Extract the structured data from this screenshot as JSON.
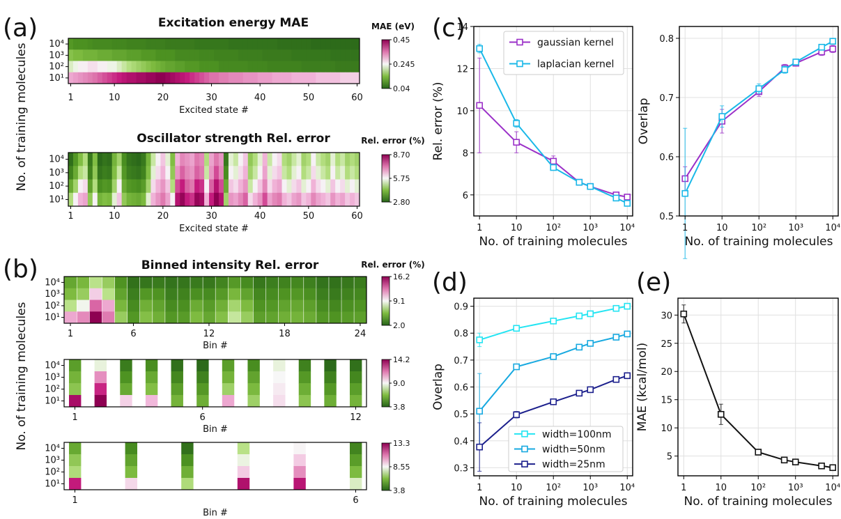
{
  "panel_letters": [
    "(a)",
    "(b)",
    "(c)",
    "(d)",
    "(e)"
  ],
  "common": {
    "ylabel_training": "No. of training molecules",
    "xlabel_training": "No. of training molecules",
    "ylevels": [
      "10⁴",
      "10³",
      "10²",
      "10¹"
    ]
  },
  "chart_data": [
    {
      "id": "a1",
      "type": "heatmap",
      "title": "Excitation energy MAE",
      "xlabel": "Excited state #",
      "ylabel": "No. of training molecules",
      "xticks": [
        "1",
        "10",
        "20",
        "30",
        "40",
        "50",
        "60"
      ],
      "rows": [
        "10⁴",
        "10³",
        "10²",
        "10¹"
      ],
      "colorbar": {
        "title": "MAE (eV)",
        "ticks": [
          "0.45",
          "0.245",
          "0.04"
        ],
        "min": 0.04,
        "max": 0.45
      },
      "values": [
        [
          0.11,
          0.1,
          0.1,
          0.1,
          0.095,
          0.09,
          0.09,
          0.09,
          0.09,
          0.085,
          0.085,
          0.085,
          0.08,
          0.08,
          0.08,
          0.08,
          0.075,
          0.075,
          0.075,
          0.075,
          0.07,
          0.07,
          0.07,
          0.07,
          0.07,
          0.07,
          0.065,
          0.065,
          0.065,
          0.065,
          0.065,
          0.065,
          0.065,
          0.06,
          0.06,
          0.06,
          0.06,
          0.06,
          0.06,
          0.06,
          0.06,
          0.06,
          0.06,
          0.055,
          0.055,
          0.055,
          0.055,
          0.055,
          0.055,
          0.055,
          0.05,
          0.05,
          0.05,
          0.05,
          0.05,
          0.05,
          0.05,
          0.05,
          0.05,
          0.05
        ],
        [
          0.17,
          0.16,
          0.16,
          0.15,
          0.15,
          0.15,
          0.14,
          0.14,
          0.14,
          0.13,
          0.13,
          0.13,
          0.12,
          0.12,
          0.12,
          0.11,
          0.11,
          0.11,
          0.1,
          0.1,
          0.1,
          0.1,
          0.09,
          0.09,
          0.09,
          0.09,
          0.09,
          0.085,
          0.085,
          0.085,
          0.08,
          0.08,
          0.08,
          0.08,
          0.08,
          0.075,
          0.075,
          0.075,
          0.075,
          0.075,
          0.07,
          0.07,
          0.07,
          0.07,
          0.07,
          0.07,
          0.065,
          0.065,
          0.065,
          0.065,
          0.065,
          0.065,
          0.065,
          0.065,
          0.06,
          0.06,
          0.06,
          0.06,
          0.06,
          0.06
        ],
        [
          0.23,
          0.24,
          0.25,
          0.25,
          0.26,
          0.26,
          0.25,
          0.25,
          0.24,
          0.24,
          0.23,
          0.22,
          0.21,
          0.2,
          0.19,
          0.18,
          0.17,
          0.16,
          0.15,
          0.14,
          0.13,
          0.13,
          0.12,
          0.12,
          0.11,
          0.11,
          0.11,
          0.1,
          0.1,
          0.1,
          0.1,
          0.09,
          0.09,
          0.09,
          0.09,
          0.09,
          0.09,
          0.085,
          0.085,
          0.085,
          0.085,
          0.08,
          0.08,
          0.08,
          0.08,
          0.08,
          0.08,
          0.08,
          0.075,
          0.075,
          0.075,
          0.075,
          0.075,
          0.075,
          0.075,
          0.07,
          0.07,
          0.07,
          0.07,
          0.07
        ],
        [
          0.3,
          0.31,
          0.32,
          0.33,
          0.34,
          0.35,
          0.36,
          0.37,
          0.38,
          0.39,
          0.4,
          0.41,
          0.42,
          0.42,
          0.43,
          0.43,
          0.44,
          0.44,
          0.45,
          0.45,
          0.44,
          0.43,
          0.42,
          0.41,
          0.4,
          0.39,
          0.38,
          0.37,
          0.36,
          0.35,
          0.35,
          0.34,
          0.34,
          0.33,
          0.33,
          0.33,
          0.32,
          0.32,
          0.32,
          0.31,
          0.31,
          0.31,
          0.3,
          0.3,
          0.3,
          0.3,
          0.29,
          0.29,
          0.29,
          0.29,
          0.29,
          0.28,
          0.28,
          0.28,
          0.28,
          0.28,
          0.27,
          0.27,
          0.27,
          0.27
        ]
      ]
    },
    {
      "id": "a2",
      "type": "heatmap",
      "title": "Oscillator strength Rel. error",
      "xlabel": "Excited state #",
      "ylabel": "No. of training molecules",
      "xticks": [
        "1",
        "10",
        "20",
        "30",
        "40",
        "50",
        "60"
      ],
      "rows": [
        "10⁴",
        "10³",
        "10²",
        "10¹"
      ],
      "colorbar": {
        "title": "Rel. error (%)",
        "ticks": [
          "8.70",
          "5.75",
          "2.80"
        ],
        "min": 2.8,
        "max": 8.7
      },
      "values": [
        [
          3.0,
          3.8,
          4.6,
          5.2,
          3.2,
          4.6,
          2.9,
          3.1,
          3.0,
          4.4,
          5.0,
          3.6,
          3.1,
          3.0,
          2.9,
          3.2,
          4.4,
          5.4,
          5.8,
          6.2,
          5.6,
          4.6,
          6.4,
          7.0,
          6.8,
          6.6,
          7.2,
          7.0,
          5.2,
          6.6,
          7.2,
          6.8,
          3.2,
          5.6,
          5.4,
          5.8,
          6.2,
          4.8,
          5.2,
          5.6,
          6.4,
          5.4,
          5.8,
          6.0,
          5.2,
          5.0,
          5.4,
          5.6,
          5.0,
          5.2,
          5.8,
          5.4,
          5.2,
          5.0,
          5.6,
          5.2,
          5.4,
          5.0,
          5.2,
          5.0
        ],
        [
          3.4,
          4.2,
          5.2,
          5.4,
          3.4,
          4.8,
          3.1,
          3.3,
          3.2,
          4.6,
          5.4,
          3.8,
          3.3,
          3.2,
          3.1,
          3.4,
          4.6,
          5.6,
          6.0,
          6.4,
          5.8,
          4.8,
          6.8,
          7.4,
          7.0,
          6.8,
          7.4,
          7.2,
          5.4,
          6.8,
          7.6,
          7.0,
          3.6,
          5.8,
          5.6,
          6.0,
          6.4,
          5.0,
          5.4,
          5.8,
          6.6,
          5.6,
          6.0,
          6.2,
          5.4,
          5.2,
          5.6,
          5.8,
          5.2,
          5.4,
          6.0,
          5.6,
          5.4,
          5.2,
          5.8,
          5.4,
          5.6,
          5.2,
          5.4,
          5.2
        ],
        [
          4.2,
          5.0,
          5.8,
          6.0,
          4.0,
          5.2,
          3.6,
          3.8,
          3.7,
          5.0,
          5.8,
          4.2,
          3.8,
          3.7,
          3.6,
          3.9,
          5.0,
          6.0,
          6.4,
          6.8,
          6.2,
          5.2,
          7.6,
          8.0,
          7.4,
          7.2,
          8.0,
          7.8,
          5.8,
          7.4,
          8.2,
          7.6,
          4.2,
          6.2,
          6.0,
          6.4,
          6.8,
          5.4,
          5.8,
          6.2,
          7.0,
          6.0,
          6.4,
          6.6,
          5.8,
          5.6,
          6.0,
          6.2,
          5.6,
          5.8,
          6.4,
          6.0,
          5.8,
          5.6,
          6.2,
          5.8,
          6.0,
          5.6,
          5.8,
          5.6
        ],
        [
          5.2,
          5.8,
          6.4,
          6.6,
          4.8,
          5.8,
          4.4,
          4.6,
          4.5,
          5.6,
          6.2,
          4.8,
          4.4,
          4.3,
          4.2,
          4.5,
          5.6,
          6.4,
          6.8,
          7.2,
          6.6,
          5.8,
          8.2,
          8.6,
          8.0,
          7.8,
          8.6,
          8.4,
          6.4,
          8.0,
          8.7,
          8.2,
          5.0,
          6.8,
          6.6,
          7.0,
          7.4,
          6.0,
          6.4,
          6.8,
          7.6,
          6.6,
          7.0,
          7.2,
          6.4,
          6.2,
          6.6,
          6.8,
          6.2,
          6.4,
          7.0,
          6.6,
          6.4,
          6.2,
          6.8,
          6.4,
          6.6,
          6.2,
          6.4,
          6.2
        ]
      ]
    },
    {
      "id": "b1",
      "type": "heatmap",
      "title": "Binned intensity Rel. error",
      "xlabel": "Bin #",
      "ylabel": "No. of training molecules",
      "xticks": [
        "1",
        "6",
        "12",
        "18",
        "24"
      ],
      "rows": [
        "10⁴",
        "10³",
        "10²",
        "10¹"
      ],
      "colorbar": {
        "title": "Rel. error (%)",
        "ticks": [
          "16.2",
          "9.1",
          "2.0"
        ],
        "min": 2.0,
        "max": 16.2
      },
      "values": [
        [
          5.2,
          6.0,
          8.0,
          7.0,
          4.2,
          2.6,
          2.8,
          3.0,
          2.7,
          2.8,
          3.0,
          2.9,
          3.5,
          4.5,
          3.8,
          2.9,
          3.2,
          3.4,
          3.6,
          3.3,
          2.7,
          2.6,
          2.9,
          3.1
        ],
        [
          6.2,
          7.0,
          10.0,
          8.0,
          5.0,
          3.2,
          4.4,
          4.2,
          3.2,
          3.4,
          4.0,
          3.8,
          4.5,
          6.0,
          5.0,
          3.6,
          3.8,
          4.2,
          4.4,
          4.0,
          3.2,
          3.0,
          3.4,
          3.6
        ],
        [
          8.0,
          9.0,
          13.0,
          11.0,
          6.0,
          3.8,
          5.6,
          5.0,
          3.8,
          4.0,
          5.4,
          4.6,
          5.6,
          7.4,
          6.2,
          4.2,
          4.4,
          5.0,
          5.2,
          4.8,
          3.8,
          3.6,
          4.0,
          4.2
        ],
        [
          11.0,
          12.0,
          16.2,
          12.5,
          7.0,
          4.4,
          6.4,
          5.6,
          4.4,
          4.6,
          6.2,
          5.2,
          6.4,
          8.2,
          7.0,
          4.8,
          5.0,
          5.6,
          5.8,
          5.4,
          4.4,
          4.2,
          4.6,
          4.8
        ]
      ]
    },
    {
      "id": "b2",
      "type": "heatmap",
      "title": "",
      "xlabel": "Bin #",
      "ylabel": "No. of training molecules",
      "xticks": [
        "1",
        "6",
        "12"
      ],
      "rows": [
        "10⁴",
        "10³",
        "10²",
        "10¹"
      ],
      "colorbar": {
        "title": "",
        "ticks": [
          "14.2",
          "9.0",
          "3.8"
        ],
        "min": 3.8,
        "max": 14.2
      },
      "values": [
        [
          5.8,
          8.8,
          4.6,
          5.2,
          4.2,
          4.0,
          5.8,
          5.2,
          8.8,
          4.8,
          4.0,
          4.2
        ],
        [
          6.6,
          11.0,
          5.4,
          6.2,
          5.0,
          4.8,
          6.6,
          6.0,
          9.0,
          5.6,
          4.8,
          5.0
        ],
        [
          7.2,
          12.8,
          6.2,
          7.0,
          5.8,
          5.6,
          7.6,
          6.8,
          9.2,
          6.4,
          5.6,
          5.8
        ],
        [
          13.6,
          14.2,
          9.6,
          10.0,
          6.6,
          6.4,
          10.4,
          7.6,
          9.4,
          7.2,
          6.4,
          6.6
        ]
      ]
    },
    {
      "id": "b3",
      "type": "heatmap",
      "title": "",
      "xlabel": "Bin #",
      "ylabel": "No. of training molecules",
      "xticks": [
        "1",
        "6"
      ],
      "rows": [
        "10⁴",
        "10³",
        "10²",
        "10¹"
      ],
      "colorbar": {
        "title": "",
        "ticks": [
          "13.3",
          "8.55",
          "3.8"
        ],
        "min": 3.8,
        "max": 13.3
      },
      "values": [
        [
          6.0,
          5.0,
          4.2,
          7.8,
          8.6,
          4.8
        ],
        [
          7.0,
          5.8,
          5.2,
          8.4,
          9.2,
          5.6
        ],
        [
          7.6,
          6.6,
          6.2,
          9.2,
          10.4,
          6.6
        ],
        [
          12.2,
          9.0,
          7.6,
          12.6,
          12.4,
          8.2
        ]
      ]
    },
    {
      "id": "c1",
      "type": "line",
      "xlabel": "No. of training molecules",
      "ylabel": "Rel. error (%)",
      "xscale": "log",
      "xlim": [
        0.7,
        14000
      ],
      "ylim": [
        5,
        14
      ],
      "xticks": [
        "1",
        "10",
        "10²",
        "10³",
        "10⁴"
      ],
      "yticks": [
        "6",
        "8",
        "10",
        "12",
        "14"
      ],
      "grid": true,
      "legend_position": "top-right",
      "x": [
        1,
        10,
        100,
        500,
        1000,
        5000,
        10000
      ],
      "series": [
        {
          "name": "gaussian kernel",
          "color": "#9b30c8",
          "values": [
            10.25,
            8.5,
            7.6,
            6.6,
            6.4,
            6.0,
            5.9
          ],
          "errors": [
            2.25,
            0.5,
            0.25,
            0.12,
            0.1,
            0.08,
            0.08
          ]
        },
        {
          "name": "laplacian kernel",
          "color": "#1ab8e8",
          "values": [
            12.95,
            9.4,
            7.3,
            6.6,
            6.4,
            5.85,
            5.6
          ],
          "errors": [
            0.2,
            0.18,
            0.12,
            0.1,
            0.08,
            0.06,
            0.06
          ]
        }
      ]
    },
    {
      "id": "c2",
      "type": "line",
      "xlabel": "No. of training molecules",
      "ylabel": "Overlap",
      "xscale": "log",
      "xlim": [
        0.7,
        14000
      ],
      "ylim": [
        0.5,
        0.82
      ],
      "xticks": [
        "1",
        "10",
        "10²",
        "10³",
        "10⁴"
      ],
      "yticks": [
        "0.5",
        "0.6",
        "0.7",
        "0.8"
      ],
      "grid": true,
      "x": [
        1,
        10,
        100,
        500,
        1000,
        5000,
        10000
      ],
      "series": [
        {
          "name": "gaussian kernel",
          "color": "#9b30c8",
          "values": [
            0.563,
            0.66,
            0.71,
            0.75,
            0.758,
            0.777,
            0.782
          ],
          "errors": [
            0.02,
            0.02,
            0.008,
            0.006,
            0.005,
            0.006,
            0.006
          ]
        },
        {
          "name": "laplacian kernel",
          "color": "#1ab8e8",
          "values": [
            0.538,
            0.668,
            0.715,
            0.747,
            0.76,
            0.785,
            0.795
          ],
          "errors": [
            0.11,
            0.018,
            0.008,
            0.006,
            0.005,
            0.005,
            0.005
          ]
        }
      ]
    },
    {
      "id": "d",
      "type": "line",
      "xlabel": "No. of training molecules",
      "ylabel": "Overlap",
      "xscale": "log",
      "xlim": [
        0.7,
        14000
      ],
      "ylim": [
        0.27,
        0.93
      ],
      "xticks": [
        "1",
        "10",
        "10²",
        "10³",
        "10⁴"
      ],
      "yticks": [
        "0.3",
        "0.4",
        "0.5",
        "0.6",
        "0.7",
        "0.8",
        "0.9"
      ],
      "grid": true,
      "legend_position": "bottom-right",
      "x": [
        1,
        10,
        100,
        500,
        1000,
        5000,
        10000
      ],
      "series": [
        {
          "name": "width=100nm",
          "color": "#22e4f2",
          "values": [
            0.775,
            0.818,
            0.845,
            0.864,
            0.872,
            0.892,
            0.9
          ],
          "errors": [
            0.025,
            0.008,
            0.006,
            0.005,
            0.004,
            0.004,
            0.004
          ]
        },
        {
          "name": "width=50nm",
          "color": "#17a9e0",
          "values": [
            0.51,
            0.675,
            0.713,
            0.748,
            0.762,
            0.785,
            0.797
          ],
          "errors": [
            0.14,
            0.01,
            0.008,
            0.006,
            0.005,
            0.005,
            0.005
          ]
        },
        {
          "name": "width=25nm",
          "color": "#1b1f8c",
          "values": [
            0.377,
            0.497,
            0.545,
            0.577,
            0.59,
            0.628,
            0.642
          ],
          "errors": [
            0.09,
            0.012,
            0.008,
            0.006,
            0.005,
            0.005,
            0.005
          ]
        }
      ]
    },
    {
      "id": "e",
      "type": "line",
      "xlabel": "No. of training molecules",
      "ylabel": "MAE (kcal/mol)",
      "xscale": "log",
      "xlim": [
        0.7,
        14000
      ],
      "ylim": [
        1.5,
        33
      ],
      "xticks": [
        "1",
        "10",
        "10²",
        "10³",
        "10⁴"
      ],
      "yticks": [
        "5",
        "10",
        "15",
        "20",
        "25",
        "30"
      ],
      "grid": true,
      "x": [
        1,
        10,
        100,
        500,
        1000,
        5000,
        10000
      ],
      "series": [
        {
          "color": "#111111",
          "values": [
            30.2,
            12.4,
            5.7,
            4.3,
            3.95,
            3.25,
            2.95
          ],
          "errors": [
            1.6,
            1.8,
            0.2,
            0.15,
            0.12,
            0.1,
            0.1
          ]
        }
      ]
    }
  ]
}
